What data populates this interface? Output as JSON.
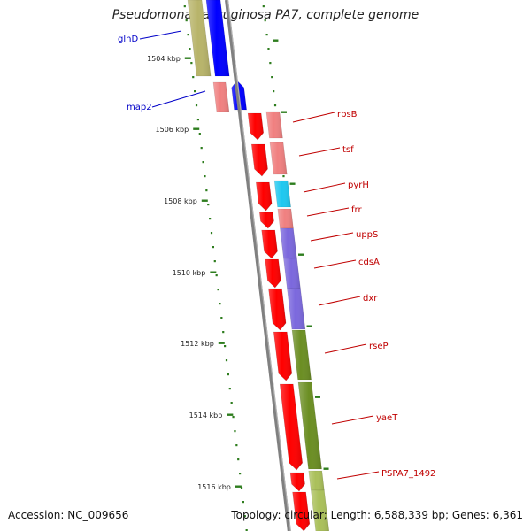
{
  "title": "Pseudomonas aeruginosa PA7, complete genome",
  "accession": "Accession: NC_009656",
  "topology": "Topology: circular; Length: 6,588,339 bp; Genes: 6,361",
  "colors": {
    "backbone": "#808080",
    "tick": "#2e7d1e",
    "label_reverse": "#0000c8",
    "label_forward": "#c00000",
    "cds_forward": "#ff0000",
    "olive": "#b8b46a",
    "blue": "#0000ff",
    "pink": "#f08080",
    "cyan": "#1ec8f0",
    "purple": "#7b68dd",
    "green": "#6b8e23",
    "light_green": "#aac05a"
  },
  "kbp_marks": [
    "1504 kbp",
    "1506 kbp",
    "1508 kbp",
    "1510 kbp",
    "1512 kbp",
    "1514 kbp",
    "1516 kbp"
  ],
  "genes": [
    {
      "name": "glnD",
      "strand": "reverse"
    },
    {
      "name": "map2",
      "strand": "reverse"
    },
    {
      "name": "rpsB",
      "strand": "forward"
    },
    {
      "name": "tsf",
      "strand": "forward"
    },
    {
      "name": "pyrH",
      "strand": "forward"
    },
    {
      "name": "frr",
      "strand": "forward"
    },
    {
      "name": "uppS",
      "strand": "forward"
    },
    {
      "name": "cdsA",
      "strand": "forward"
    },
    {
      "name": "dxr",
      "strand": "forward"
    },
    {
      "name": "rseP",
      "strand": "forward"
    },
    {
      "name": "yaeT",
      "strand": "forward"
    },
    {
      "name": "PSPA7_1492",
      "strand": "forward"
    }
  ]
}
